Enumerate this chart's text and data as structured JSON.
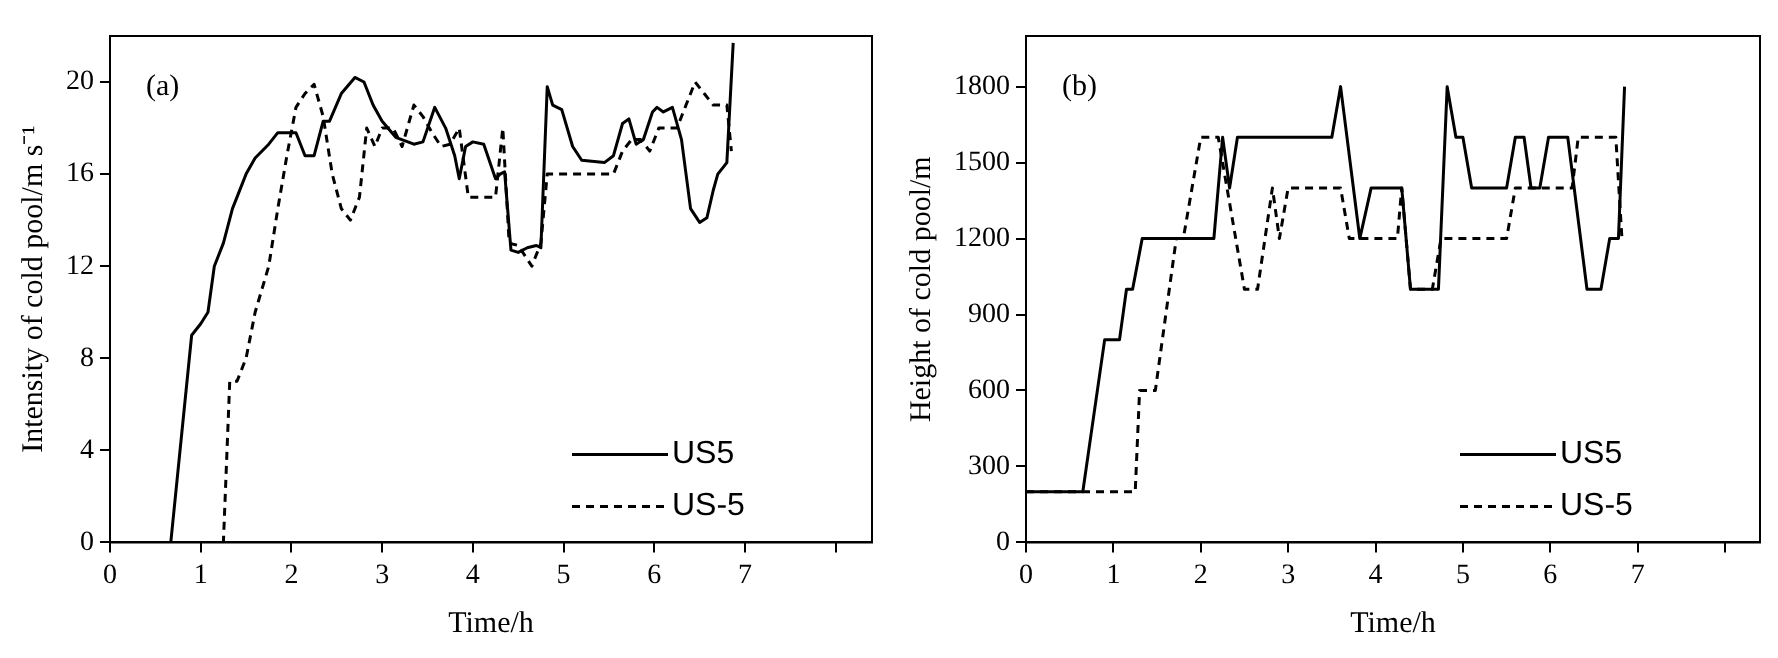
{
  "chart_data": [
    {
      "type": "line",
      "xlabel": "Time/h",
      "ylabel": "Intensity of cold pool/m s⁻¹",
      "annotations": [
        "(a)"
      ],
      "xlim": [
        0,
        8.4
      ],
      "xticks": [
        0,
        1,
        2,
        3,
        4,
        5,
        6,
        7,
        {
          "value": 8,
          "label": null
        }
      ],
      "ylim": [
        0,
        22
      ],
      "yticks": [
        0,
        4,
        8,
        12,
        16,
        20
      ],
      "grid": false,
      "legend": "bottom right",
      "marker": "none",
      "series": [
        {
          "name": "US5",
          "color": "#000000",
          "line_style": "solid",
          "x": [
            0,
            0.67,
            0.9,
            1.0,
            1.08,
            1.15,
            1.25,
            1.35,
            1.5,
            1.6,
            1.75,
            1.85,
            2.05,
            2.15,
            2.25,
            2.35,
            2.42,
            2.55,
            2.7,
            2.8,
            2.9,
            3.0,
            3.15,
            3.35,
            3.45,
            3.58,
            3.7,
            3.8,
            3.85,
            3.92,
            4.0,
            4.12,
            4.25,
            4.3,
            4.35,
            4.42,
            4.5,
            4.6,
            4.7,
            4.75,
            4.82,
            4.88,
            4.98,
            5.1,
            5.2,
            5.45,
            5.55,
            5.65,
            5.72,
            5.8,
            5.88,
            5.98,
            6.03,
            6.1,
            6.2,
            6.3,
            6.4,
            6.5,
            6.58,
            6.65,
            6.7,
            6.8,
            6.87
          ],
          "values": [
            0,
            0,
            9,
            9.5,
            10,
            12,
            13,
            14.5,
            16,
            16.7,
            17.3,
            17.8,
            17.8,
            16.8,
            16.8,
            18.3,
            18.3,
            19.5,
            20.2,
            20,
            19,
            18.3,
            17.6,
            17.3,
            17.4,
            18.9,
            18,
            16.8,
            15.8,
            17.2,
            17.4,
            17.3,
            15.8,
            16,
            16.1,
            12.7,
            12.6,
            12.8,
            12.9,
            12.8,
            19.8,
            19,
            18.8,
            17.2,
            16.6,
            16.5,
            16.8,
            18.2,
            18.4,
            17.3,
            17.5,
            18.7,
            18.9,
            18.7,
            18.9,
            17.5,
            14.5,
            13.9,
            14.1,
            15.3,
            16,
            16.5,
            21.7
          ]
        },
        {
          "name": "US-5",
          "color": "#000000",
          "line_style": "dashed",
          "x": [
            0,
            1.25,
            1.32,
            1.4,
            1.5,
            1.6,
            1.75,
            1.85,
            1.95,
            2.05,
            2.15,
            2.25,
            2.35,
            2.45,
            2.55,
            2.65,
            2.75,
            2.83,
            2.92,
            3.0,
            3.12,
            3.22,
            3.35,
            3.45,
            3.55,
            3.65,
            3.75,
            3.85,
            3.95,
            4.1,
            4.25,
            4.33,
            4.4,
            4.5,
            4.65,
            4.75,
            4.82,
            5.0,
            5.3,
            5.55,
            5.65,
            5.75,
            5.85,
            5.95,
            6.05,
            6.25,
            6.35,
            6.45,
            6.55,
            6.65,
            6.8,
            6.85
          ],
          "values": [
            0,
            0,
            7,
            7,
            8,
            10,
            12,
            14.5,
            16.8,
            18.9,
            19.5,
            19.9,
            18.5,
            16,
            14.5,
            14,
            15,
            18,
            17.2,
            18,
            18,
            17.2,
            19,
            18.5,
            17.8,
            17.2,
            17.3,
            18,
            15,
            15,
            15,
            18,
            13,
            12.9,
            12,
            13,
            16,
            16,
            16,
            16,
            17,
            17.5,
            17.5,
            17,
            18,
            18,
            19,
            20,
            19.5,
            19,
            19,
            17
          ]
        }
      ]
    },
    {
      "type": "line",
      "xlabel": "Time/h",
      "ylabel": "Height of cold pool/m",
      "annotations": [
        "(b)"
      ],
      "xlim": [
        0,
        8.4
      ],
      "xticks": [
        0,
        1,
        2,
        3,
        4,
        5,
        6,
        7,
        {
          "value": 8,
          "label": null
        }
      ],
      "ylim": [
        0,
        2000
      ],
      "yticks": [
        0,
        300,
        600,
        900,
        1200,
        1500,
        1800
      ],
      "grid": false,
      "legend": "bottom right",
      "marker": "none",
      "series": [
        {
          "name": "US5",
          "color": "#000000",
          "line_style": "solid",
          "x": [
            0,
            0.65,
            0.9,
            1.07,
            1.15,
            1.22,
            1.33,
            2.15,
            2.25,
            2.33,
            2.42,
            3.5,
            3.6,
            3.82,
            3.95,
            4.3,
            4.4,
            4.72,
            4.82,
            4.92,
            5.0,
            5.1,
            5.5,
            5.6,
            5.7,
            5.78,
            5.88,
            5.98,
            6.2,
            6.42,
            6.58,
            6.68,
            6.78,
            6.85
          ],
          "values": [
            200,
            200,
            800,
            800,
            1000,
            1000,
            1200,
            1200,
            1600,
            1400,
            1600,
            1600,
            1800,
            1200,
            1400,
            1400,
            1000,
            1000,
            1800,
            1600,
            1600,
            1400,
            1400,
            1600,
            1600,
            1400,
            1400,
            1600,
            1600,
            1000,
            1000,
            1200,
            1200,
            1800
          ]
        },
        {
          "name": "US-5",
          "color": "#000000",
          "line_style": "dashed",
          "x": [
            0,
            1.25,
            1.3,
            1.48,
            1.72,
            1.8,
            2.0,
            2.2,
            2.3,
            2.5,
            2.65,
            2.82,
            2.9,
            3.0,
            3.6,
            3.7,
            4.25,
            4.3,
            4.4,
            4.65,
            4.75,
            5.5,
            5.6,
            6.25,
            6.32,
            6.75,
            6.82
          ],
          "values": [
            200,
            200,
            600,
            600,
            1200,
            1200,
            1600,
            1600,
            1400,
            1000,
            1000,
            1400,
            1200,
            1400,
            1400,
            1200,
            1200,
            1400,
            1000,
            1000,
            1200,
            1200,
            1400,
            1400,
            1600,
            1600,
            1200
          ]
        }
      ]
    }
  ]
}
